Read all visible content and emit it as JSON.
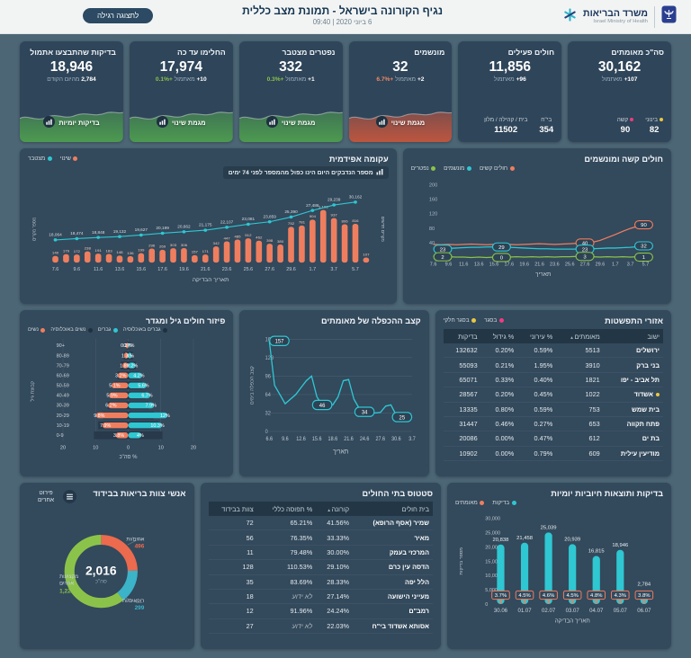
{
  "header": {
    "title": "נגיף הקורונה בישראל - תמונת מצב כללית",
    "date": "6 ביוני 2020 | 09:40",
    "display_button": "לתצוגה רגילה",
    "ministry_he": "משרד הבריאות",
    "ministry_en": "Israel Ministry of Health"
  },
  "kpis": [
    {
      "title": "סה\"כ מאומתים",
      "value": "30,162",
      "delta_n": "+107",
      "delta_word": "מאתמול",
      "stats": [
        {
          "label": "בינוני",
          "value": "82",
          "color": "#e9c842"
        },
        {
          "label": "קשה",
          "value": "90",
          "color": "#ee3d7f"
        }
      ]
    },
    {
      "title": "חולים פעילים",
      "value": "11,856",
      "delta_n": "+96",
      "delta_word": "מאתמול",
      "stats": [
        {
          "label": "בי\"ח",
          "value": "354"
        },
        {
          "label": "בית / קהילה / מלון",
          "value": "11502"
        }
      ]
    },
    {
      "title": "מונשמים",
      "value": "32",
      "delta_n": "+2",
      "delta_word": "מאתמול",
      "delta_pct": "+6.7%",
      "pct_color": "#ef8a63",
      "trend_color": "#c4563e",
      "button": "מגמת שינוי"
    },
    {
      "title": "נפטרים מצטבר",
      "value": "332",
      "delta_n": "+1",
      "delta_word": "מאתמול",
      "delta_pct": "+0.3%",
      "pct_color": "#8bc34a",
      "trend_color": "#4e9e4f",
      "button": "מגמת שינוי"
    },
    {
      "title": "החלימו עד כה",
      "value": "17,974",
      "delta_n": "+10",
      "delta_word": "מאתמול",
      "delta_pct": "+0.1%",
      "pct_color": "#8bc34a",
      "trend_color": "#4e9e4f",
      "button": "מגמת שינוי"
    },
    {
      "title": "בדיקות שהתבצעו אתמול",
      "value": "18,946",
      "delta_n": "2,784",
      "delta_word": "מהיום הקודם",
      "trend_color": "#4e9e4f",
      "button": "בדיקות יומיות"
    }
  ],
  "panels": {
    "severe": {
      "title": "חולים קשה ומונשמים"
    },
    "epidemic": {
      "title": "עקומה אפידמית",
      "note": "מספר הנדבקים היום הינו כפול מהמספר לפני 74 ימים"
    },
    "pyramid": {
      "title": "פיזור חולים גיל ומגדר"
    },
    "doubling": {
      "title": "קצב ההכפלה של מאומתים"
    },
    "spread": {
      "title": "אזורי התפשטות"
    },
    "tests": {
      "title": "בדיקות ותוצאות חיוביות יומיות"
    },
    "hospitals": {
      "title": "סטטוס בתי החולים"
    },
    "staff": {
      "title": "אנשי צוות בריאות בבידוד",
      "button": "פירוט אחרים"
    }
  },
  "chart_data": {
    "severe": {
      "type": "line",
      "title": "חולים קשה ומונשמים",
      "legend": [
        {
          "label": "חולים קשים",
          "color": "#ef7e5f"
        },
        {
          "label": "מונשמים",
          "color": "#2ec7d2"
        },
        {
          "label": "נפטרים",
          "color": "#8bc34a"
        }
      ],
      "xlabel": "תאריך",
      "x_ticks": [
        "7.6",
        "9.6",
        "11.6",
        "13.6",
        "15.6",
        "17.6",
        "19.6",
        "21.6",
        "23.6",
        "25.6",
        "27.6",
        "29.6",
        "1.7",
        "3.7",
        "5.7"
      ],
      "y_ticks": [
        40,
        80,
        120,
        160,
        200
      ],
      "ylim": [
        0,
        200
      ],
      "series": [
        {
          "name": "חולים קשים",
          "color": "#ef7e5f",
          "values": [
            36,
            35,
            36,
            35,
            36,
            37,
            36,
            35,
            36,
            37,
            36,
            35,
            36,
            37,
            38,
            37,
            36,
            37,
            38,
            39,
            40,
            42,
            47,
            55,
            63,
            72,
            80,
            86,
            89,
            90
          ]
        },
        {
          "name": "מונשמים",
          "color": "#2ec7d2",
          "values": [
            23,
            24,
            25,
            26,
            27,
            28,
            28,
            29,
            29,
            29,
            28,
            27,
            26,
            25,
            24,
            24,
            23,
            23,
            23,
            23,
            23,
            24,
            25,
            26,
            26,
            27,
            28,
            30,
            31,
            32
          ]
        },
        {
          "name": "נפטרים",
          "color": "#8bc34a",
          "values": [
            2,
            1,
            2,
            1,
            1,
            0,
            1,
            0,
            1,
            0,
            1,
            2,
            1,
            2,
            1,
            2,
            1,
            2,
            2,
            3,
            3,
            2,
            1,
            2,
            1,
            2,
            1,
            2,
            2,
            1
          ]
        }
      ],
      "callouts": [
        {
          "series": 1,
          "index": 0,
          "label": "23"
        },
        {
          "series": 2,
          "index": 0,
          "label": "2"
        },
        {
          "series": 1,
          "index": 9,
          "label": "29"
        },
        {
          "series": 2,
          "index": 9,
          "label": "0"
        },
        {
          "series": 0,
          "index": 20,
          "label": "40"
        },
        {
          "series": 1,
          "index": 20,
          "label": "23"
        },
        {
          "series": 2,
          "index": 20,
          "label": "3"
        },
        {
          "series": 0,
          "index": 29,
          "label": "90"
        },
        {
          "series": 1,
          "index": 29,
          "label": "32"
        },
        {
          "series": 2,
          "index": 29,
          "label": "1"
        }
      ]
    },
    "epidemic": {
      "type": "combo",
      "title": "עקומה אפידמית",
      "note": "מספר הנדבקים היום הינו כפול מהמספר לפני 74 ימים",
      "legend": [
        {
          "label": "שינוי",
          "color": "#ef7e5f"
        },
        {
          "label": "מצטבר",
          "color": "#2ec7d2"
        }
      ],
      "xlabel": "תאריך הבדיקה",
      "ylabel_left": "מספר מקרים",
      "ylabel_right": "מקרים חדשים",
      "x_ticks": [
        "7.6",
        "9.6",
        "11.6",
        "13.6",
        "15.6",
        "17.6",
        "19.6",
        "21.6",
        "23.6",
        "25.6",
        "27.6",
        "29.6",
        "1.7",
        "3.7",
        "5.7"
      ],
      "bars": [
        140,
        179,
        172,
        238,
        191,
        183,
        148,
        136,
        199,
        296,
        269,
        303,
        306,
        157,
        171,
        342,
        447,
        485,
        512,
        462,
        398,
        380,
        752,
        781,
        904,
        1106,
        937,
        806,
        816,
        107
      ],
      "bar_labels": [
        "140",
        "179",
        "172",
        "238",
        "191",
        "183",
        "148",
        "136",
        "199",
        "296",
        "269",
        "303",
        "306",
        "157",
        "171",
        "342",
        "447",
        "485",
        "512",
        "462",
        "398",
        "380",
        "752",
        "781",
        "904",
        "1,106",
        "937",
        "806",
        "816",
        "107"
      ],
      "line": [
        18064,
        18474,
        18848,
        19132,
        19627,
        20199,
        20662,
        21175,
        22107,
        23081,
        23859,
        25390,
        27486,
        29239,
        30162
      ],
      "line_labels": [
        "18,064",
        "18,474",
        "18,848",
        "19,132",
        "19,627",
        "20,199",
        "20,662",
        "21,175",
        "22,107",
        "23,081",
        "23,859",
        "25,390",
        "27,486",
        "29,239",
        "30,162"
      ]
    },
    "doubling": {
      "type": "line",
      "title": "קצב ההכפלה של מאומתים",
      "xlabel": "תאריך",
      "ylabel": "קצב הכפלה בימים",
      "x_ticks": [
        "6.6",
        "9.6",
        "12.6",
        "15.6",
        "18.6",
        "21.6",
        "24.6",
        "27.6",
        "30.6",
        "3.7"
      ],
      "y_ticks": [
        0,
        32,
        64,
        96,
        128,
        160
      ],
      "grid": true,
      "values": [
        157,
        80,
        64,
        48,
        56,
        64,
        76,
        88,
        96,
        60,
        46,
        44,
        46,
        60,
        88,
        90,
        56,
        40,
        34,
        33,
        32,
        33,
        44,
        46,
        28,
        20,
        21,
        25
      ],
      "callouts": [
        {
          "index": 0,
          "label": "157"
        },
        {
          "index": 10,
          "label": "46"
        },
        {
          "index": 18,
          "label": "34"
        },
        {
          "index": 27,
          "label": "25"
        }
      ]
    },
    "pyramid": {
      "type": "pyramid",
      "title": "פיזור חולים גיל ומגדר",
      "legend": [
        {
          "label": "גברים באוכלוסיה",
          "color": "#1f3140"
        },
        {
          "label": "גברים",
          "color": "#2ec7d2"
        },
        {
          "label": "נשים באוכלוסיה",
          "color": "#1f3140"
        },
        {
          "label": "נשים",
          "color": "#ef7e5f"
        }
      ],
      "xlabel": "% סה\"כ",
      "ylabel": "קבוצת גיל",
      "x_ticks": [
        "20",
        "10",
        "0",
        "10",
        "20"
      ],
      "ages": [
        "+90",
        "80-89",
        "70-79",
        "60-69",
        "50-59",
        "40-49",
        "30-39",
        "20-29",
        "10-19",
        "0-9"
      ],
      "women": [
        0.7,
        1.3,
        1.8,
        3.2,
        5.1,
        5.9,
        6.2,
        9.8,
        7.9,
        3.8
      ],
      "women_labels": [
        "0.7%",
        "1.3%",
        "1.8%",
        "3.2%",
        "5.1%",
        "5.9%",
        "6.2%",
        "9.8%",
        "7.9%",
        "3.8%"
      ],
      "men": [
        0.3,
        1,
        2.2,
        4.2,
        5.6,
        6.7,
        7.9,
        12,
        10.3,
        4
      ],
      "men_labels": [
        "0.3%",
        "1%",
        "2.2%",
        "4.2%",
        "5.6%",
        "6.7%",
        "7.9%",
        "12%",
        "10.3%",
        "4%"
      ],
      "population": [
        0.6,
        1.4,
        2.3,
        3.3,
        4.3,
        5.3,
        6.3,
        7.8,
        9.2,
        10.5
      ]
    },
    "tests": {
      "type": "bar",
      "title": "בדיקות ותוצאות חיוביות יומיות",
      "legend": [
        {
          "label": "בדיקות",
          "color": "#2ec7d2"
        },
        {
          "label": "מאומתים",
          "color": "#ef7e5f"
        }
      ],
      "xlabel": "תאריך הבדיקה",
      "ylabel": "מספר בדיקות",
      "categories": [
        "30.06",
        "01.07",
        "02.07",
        "03.07",
        "04.07",
        "05.07",
        "06.07"
      ],
      "values": [
        20838,
        21458,
        25039,
        20939,
        16815,
        18946,
        2784
      ],
      "value_labels": [
        "20,838",
        "21,458",
        "25,039",
        "20,939",
        "16,815",
        "18,946",
        "2,784"
      ],
      "pct_labels": [
        "3.7%",
        "4.5%",
        "4.6%",
        "4.5%",
        "4.8%",
        "4.3%",
        "3.8%"
      ],
      "y_ticks": [
        0,
        5000,
        10000,
        15000,
        20000,
        25000,
        30000
      ],
      "y_tick_labels": [
        "0",
        "5,000",
        "10,000",
        "15,000",
        "20,000",
        "25,000",
        "30,000"
      ],
      "ylim": [
        0,
        30000
      ]
    },
    "staff_donut": {
      "type": "pie",
      "title": "אנשי צוות בריאות בבידוד",
      "total": "2,016",
      "total_label": "סה\"כ",
      "segments": [
        {
          "label": "אחים/ות",
          "value": 496,
          "display": "496",
          "color": "#ec6a4e"
        },
        {
          "label": "רופאים/ות",
          "value": 299,
          "display": "299",
          "color": "#3bb3c9"
        },
        {
          "label": "מקצועות אחרים",
          "value": 1221,
          "display": "1,221",
          "color": "#8bc34a"
        }
      ]
    }
  },
  "tables": {
    "spread": {
      "legend": [
        {
          "label": "בסגר",
          "color": "#ee3d7f"
        },
        {
          "label": "בסגר חלקי",
          "color": "#e9c842"
        }
      ],
      "columns": [
        "ישוב",
        "מאומתים",
        "% עירוני",
        "% גידול",
        "בדיקות"
      ],
      "sort_col": 1,
      "rows": [
        {
          "cells": [
            "ירושלים",
            "5513",
            "0.59%",
            "0.20%",
            "132632"
          ]
        },
        {
          "cells": [
            "בני ברק",
            "3910",
            "1.95%",
            "0.21%",
            "55093"
          ]
        },
        {
          "cells": [
            "תל אביב - יפו",
            "1821",
            "0.40%",
            "0.33%",
            "65071"
          ]
        },
        {
          "cells": [
            "אשדוד",
            "1022",
            "0.45%",
            "0.20%",
            "28567"
          ],
          "dot": "#e9c842"
        },
        {
          "cells": [
            "בית שמש",
            "753",
            "0.59%",
            "0.80%",
            "13335"
          ]
        },
        {
          "cells": [
            "פתח תקווה",
            "653",
            "0.27%",
            "0.46%",
            "31447"
          ]
        },
        {
          "cells": [
            "בת ים",
            "612",
            "0.47%",
            "0.00%",
            "20086"
          ]
        },
        {
          "cells": [
            "מודיעין עילית",
            "609",
            "0.79%",
            "0.00%",
            "10902"
          ]
        }
      ]
    },
    "hospitals": {
      "columns": [
        "בית חולים",
        "קורונה",
        "% תפוסה כללי",
        "צוות בבידוד"
      ],
      "sort_col": 1,
      "rows": [
        {
          "cells": [
            "שמיר (אסף הרופא)",
            "41.56%",
            "65.21%",
            "72"
          ]
        },
        {
          "cells": [
            "מאיר",
            "33.33%",
            "76.35%",
            "56"
          ]
        },
        {
          "cells": [
            "המרכזי בעמק",
            "30.00%",
            "79.48%",
            "11"
          ]
        },
        {
          "cells": [
            "הדסה עין כרם",
            "29.10%",
            "110.53%",
            "128"
          ]
        },
        {
          "cells": [
            "הלל יפה",
            "28.33%",
            "83.69%",
            "35"
          ]
        },
        {
          "cells": [
            "מעייני הישועה",
            "27.14%",
            "לא ידוע",
            "18"
          ]
        },
        {
          "cells": [
            "רמב\"ם",
            "24.24%",
            "91.96%",
            "12"
          ]
        },
        {
          "cells": [
            "אסותא אשדוד בי\"ח",
            "22.03%",
            "לא ידוע",
            "27"
          ]
        }
      ]
    }
  }
}
